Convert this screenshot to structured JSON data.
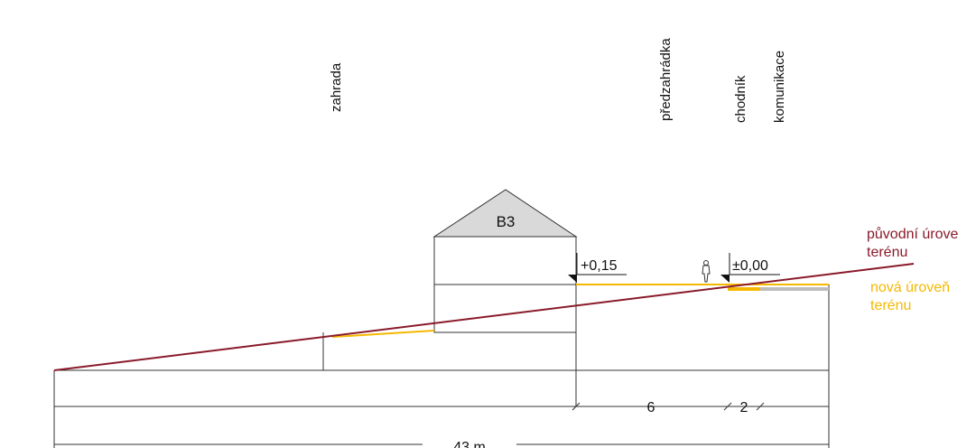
{
  "zones": {
    "garden": "zahrada",
    "front_garden": "předzahrádka",
    "sidewalk": "chodník",
    "road": "komunikace"
  },
  "building": {
    "label": "B3"
  },
  "levels": {
    "entrance": "+0,15",
    "zero": "±0,00"
  },
  "dimensions": {
    "front_garden_width": "6",
    "sidewalk_width": "2",
    "total_length": "43 m"
  },
  "legend": {
    "original_terrain_line1": "původní úrove",
    "original_terrain_line2": "terénu",
    "new_terrain_line1": "nová úroveň",
    "new_terrain_line2": "terénu"
  },
  "colors": {
    "original_terrain": "#8a1a2a",
    "new_terrain": "#f5b800",
    "roof_fill": "#d9d9d9",
    "road_surface": "#bdbdbd"
  }
}
